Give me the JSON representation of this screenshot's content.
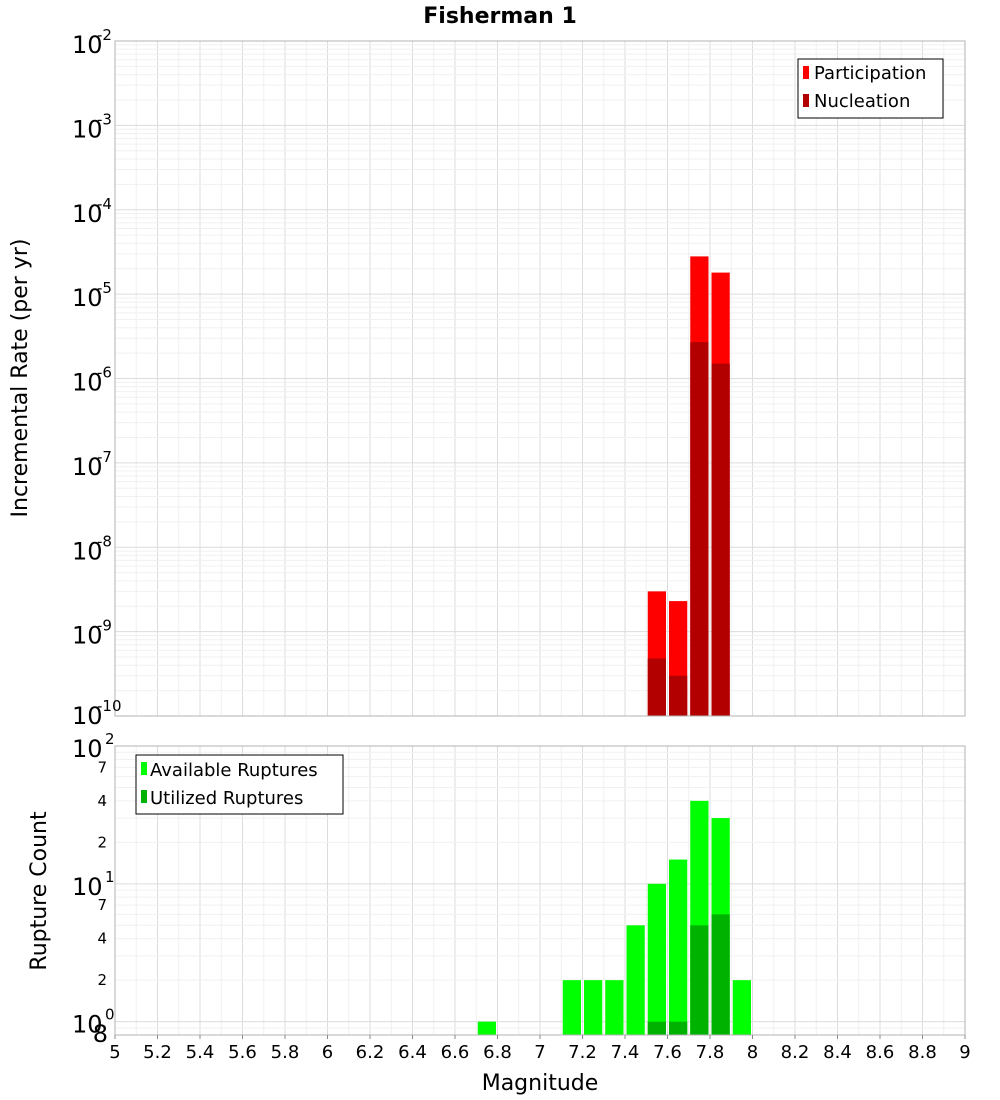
{
  "chart_data": {
    "title": "Fisherman 1",
    "xlabel": "Magnitude",
    "xlim": [
      5,
      9
    ],
    "xticks": [
      "5",
      "5.2",
      "5.4",
      "5.6",
      "5.8",
      "6",
      "6.2",
      "6.4",
      "6.6",
      "6.8",
      "7",
      "7.2",
      "7.4",
      "7.6",
      "7.8",
      "8",
      "8.2",
      "8.4",
      "8.6",
      "8.8",
      "9"
    ],
    "bin_width": 0.1,
    "grid": true,
    "panels": [
      {
        "type": "bar",
        "ylabel": "Incremental Rate (per yr)",
        "yscale": "log",
        "ylim": [
          1e-10,
          0.01
        ],
        "ytick_exponents": [
          "-2",
          "-3",
          "-4",
          "-5",
          "-6",
          "-7",
          "-8",
          "-9",
          "-10"
        ],
        "ytick_base": "10",
        "legend_position": "top-right",
        "series": [
          {
            "name": "Participation",
            "color": "#ff0000",
            "x": [
              7.55,
              7.65,
              7.75,
              7.85
            ],
            "values": [
              3e-09,
              2.3e-09,
              2.8e-05,
              1.8e-05
            ]
          },
          {
            "name": "Nucleation",
            "color": "#b20000",
            "x": [
              7.55,
              7.65,
              7.75,
              7.85
            ],
            "values": [
              4.8e-10,
              3e-10,
              2.7e-06,
              1.5e-06
            ]
          }
        ]
      },
      {
        "type": "bar",
        "ylabel": "Rupture Count",
        "yscale": "log",
        "ylim": [
          0.8,
          100
        ],
        "ytick_base": "10",
        "major_ticks": [
          {
            "label": "10",
            "exp": "2"
          },
          {
            "label": "10",
            "exp": "1"
          },
          {
            "label": "10",
            "exp": "0"
          }
        ],
        "minor_tick_labels": [
          "7",
          "4",
          "2",
          "7",
          "4",
          "2",
          "8"
        ],
        "legend_position": "top-left",
        "series": [
          {
            "name": "Available Ruptures",
            "color": "#00ff00",
            "x": [
              6.75,
              7.15,
              7.25,
              7.35,
              7.45,
              7.55,
              7.65,
              7.75,
              7.85,
              7.95
            ],
            "values": [
              1,
              2,
              2,
              2,
              5,
              10,
              15,
              40,
              30,
              2
            ]
          },
          {
            "name": "Utilized Ruptures",
            "color": "#00b200",
            "x": [
              7.55,
              7.65,
              7.75,
              7.85
            ],
            "values": [
              1,
              1,
              5,
              6
            ]
          }
        ]
      }
    ]
  }
}
